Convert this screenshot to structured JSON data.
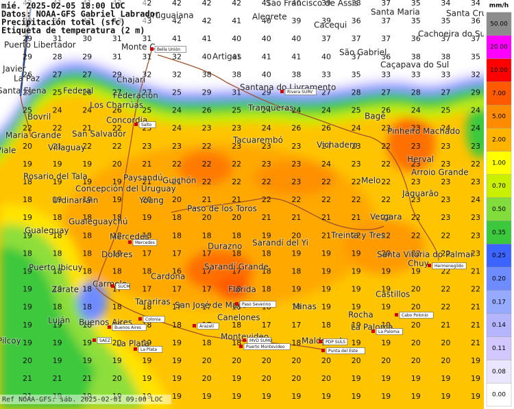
{
  "header": {
    "lines": [
      "mié. 2025-02-05 18:00 LOC",
      "Datos: NOAA-GFS Gabriel Labrador",
      "Precipitación total (sfc)",
      "Etiqueta de temperatura (2 m)"
    ]
  },
  "footer": "Ref NOAA-GFS: sáb. 2025-02-01 09:00 LOC",
  "legend": {
    "unit": "mm/h",
    "levels": [
      {
        "label": "50.00",
        "color": "#8c8c8c"
      },
      {
        "label": "20.00",
        "color": "#ff00ff"
      },
      {
        "label": "10.00",
        "color": "#ff0000"
      },
      {
        "label": "7.00",
        "color": "#ff5a00"
      },
      {
        "label": "5.00",
        "color": "#ff8c00"
      },
      {
        "label": "2.00",
        "color": "#ffb400"
      },
      {
        "label": "1.00",
        "color": "#ffff00"
      },
      {
        "label": "0.70",
        "color": "#c8f000"
      },
      {
        "label": "0.50",
        "color": "#82dc3c"
      },
      {
        "label": "0.35",
        "color": "#3cc83c"
      },
      {
        "label": "0.25",
        "color": "#3c64ff"
      },
      {
        "label": "0.20",
        "color": "#6e8cff"
      },
      {
        "label": "0.17",
        "color": "#96aaff"
      },
      {
        "label": "0.14",
        "color": "#b4b4ff"
      },
      {
        "label": "0.11",
        "color": "#d2c8ff"
      },
      {
        "label": "0.08",
        "color": "#ebe6ff"
      },
      {
        "label": "0.00",
        "color": "#ffffff"
      }
    ]
  },
  "temperature_grid": {
    "rows": [
      [
        42,
        41,
        41,
        43,
        42,
        42,
        42,
        42,
        41,
        40,
        39,
        38,
        37,
        35,
        34,
        34
      ],
      [
        29,
        31,
        41,
        43,
        43,
        42,
        42,
        41,
        40,
        39,
        39,
        36,
        37,
        35,
        35,
        36
      ],
      [
        29,
        31,
        30,
        31,
        31,
        41,
        41,
        40,
        40,
        40,
        37,
        37,
        37,
        36,
        37,
        37
      ],
      [
        29,
        28,
        29,
        31,
        31,
        32,
        40,
        41,
        41,
        41,
        40,
        37,
        36,
        38,
        38,
        35
      ],
      [
        26,
        27,
        27,
        29,
        32,
        32,
        38,
        38,
        40,
        38,
        33,
        35,
        33,
        33,
        33,
        32
      ],
      [
        25,
        25,
        26,
        27,
        27,
        25,
        29,
        31,
        29,
        30,
        27,
        28,
        27,
        28,
        27,
        29
      ],
      [
        25,
        24,
        24,
        26,
        25,
        24,
        26,
        25,
        24,
        24,
        24,
        25,
        26,
        24,
        25,
        24
      ],
      [
        22,
        22,
        21,
        22,
        23,
        24,
        23,
        23,
        24,
        26,
        26,
        24,
        23,
        23,
        24,
        24
      ],
      [
        20,
        21,
        22,
        22,
        23,
        23,
        22,
        23,
        23,
        23,
        24,
        23,
        22,
        23,
        23,
        23
      ],
      [
        19,
        19,
        19,
        20,
        21,
        22,
        22,
        22,
        23,
        23,
        24,
        23,
        22,
        23,
        23,
        22
      ],
      [
        18,
        19,
        19,
        19,
        21,
        21,
        22,
        22,
        22,
        23,
        22,
        22,
        22,
        23,
        23,
        23
      ],
      [
        18,
        19,
        19,
        19,
        20,
        20,
        21,
        21,
        22,
        22,
        22,
        22,
        22,
        23,
        23,
        24
      ],
      [
        19,
        18,
        18,
        18,
        19,
        18,
        20,
        20,
        21,
        21,
        21,
        21,
        22,
        22,
        23,
        23
      ],
      [
        19,
        18,
        18,
        18,
        18,
        18,
        18,
        18,
        19,
        20,
        21,
        22,
        22,
        22,
        22,
        23
      ],
      [
        18,
        18,
        18,
        18,
        17,
        17,
        17,
        18,
        18,
        19,
        19,
        19,
        20,
        22,
        22,
        23
      ],
      [
        19,
        18,
        18,
        18,
        18,
        16,
        17,
        17,
        18,
        18,
        19,
        19,
        19,
        19,
        22,
        21
      ],
      [
        19,
        19,
        18,
        17,
        17,
        17,
        17,
        18,
        18,
        19,
        19,
        19,
        19,
        20,
        22,
        22
      ],
      [
        19,
        18,
        18,
        18,
        18,
        17,
        17,
        18,
        18,
        18,
        19,
        19,
        19,
        20,
        22,
        21
      ],
      [
        19,
        19,
        18,
        18,
        18,
        18,
        17,
        18,
        17,
        17,
        18,
        19,
        19,
        20,
        21,
        21
      ],
      [
        19,
        19,
        19,
        20,
        19,
        19,
        18,
        18,
        18,
        18,
        18,
        19,
        19,
        20,
        20,
        21
      ],
      [
        20,
        19,
        19,
        19,
        19,
        19,
        20,
        20,
        20,
        20,
        20,
        20,
        20,
        20,
        20,
        19
      ],
      [
        21,
        21,
        21,
        20,
        19,
        19,
        20,
        19,
        20,
        20,
        20,
        19,
        19,
        19,
        19,
        19
      ],
      [
        21,
        19,
        19,
        19,
        19,
        19,
        19,
        19,
        19,
        19,
        19,
        19,
        19,
        19,
        19,
        19
      ]
    ]
  },
  "places": [
    "Puerto Libertador",
    "Monte C",
    "Uruguaiana",
    "Alegrete",
    "São Francisco de Assis",
    "Santa Maria",
    "Santa Cruz",
    "Cacequi",
    "Cachoeira do Sul",
    "São Gabriel",
    "Caçapava do Sul",
    "Artigas",
    "Javier",
    "La Paz",
    "Santa Elena",
    "Federal",
    "Chajari",
    "Federación",
    "Los Charrúas",
    "Santana do Livramento",
    "Tranqueras",
    "Bagé",
    "Bovril",
    "Concordia",
    "Pinheiro Machado",
    "Maria Grande",
    "San Salvador",
    "Tacuarembó",
    "Vichadero",
    "Viale",
    "Villaguay",
    "Herval",
    "Arroio Grande",
    "Rosario del Tala",
    "Paysandú",
    "Guichón",
    "Melo",
    "Concepción del Uruguay",
    "Jaguarão",
    "Urdinarrain",
    "Young",
    "Paso de los Toros",
    "Vergara",
    "Gualeguaychú",
    "Gualeguay",
    "Treinta y Tres",
    "Mercedes",
    "Durazno",
    "Sarandí del Yi",
    "Puerto Ibicuy",
    "Dolores",
    "Santa Vitória do Palmar",
    "Chuy",
    "Sarandí Grande",
    "Cardona",
    "Carmelo",
    "Zárate",
    "Florida",
    "Castillos",
    "Tarariras",
    "San José de Mayo",
    "Minas",
    "Rocha",
    "Canelones",
    "Luján",
    "Buenos Aires",
    "La Paloma",
    "Montevideo",
    "Maldonado",
    "Pilcoy",
    "La Plata"
  ],
  "stations": [
    "Bella Unión",
    "Rivera SURV",
    "Salto",
    "Mercedes",
    "Hermenegildo",
    "SUCM",
    "Paso Severino",
    "Colonia",
    "Arazatí",
    "Buenos Aires",
    "SAEZ",
    "La Plata",
    "MVD SUMU",
    "Puerto Montevideo",
    "PDP SULS",
    "Punta del Este",
    "Cabo Polonio",
    "La Paloma"
  ]
}
